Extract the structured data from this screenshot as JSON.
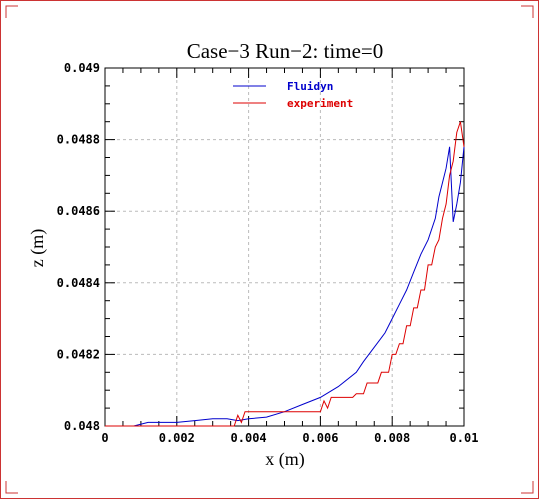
{
  "chart_data": {
    "type": "line",
    "title": "Case−3 Run−2: time=0",
    "xlabel": "x (m)",
    "ylabel": "z (m)",
    "xlim": [
      0,
      0.01
    ],
    "ylim": [
      0.048,
      0.049
    ],
    "xticks": [
      0,
      0.002,
      0.004,
      0.006,
      0.008,
      0.01
    ],
    "yticks": [
      0.048,
      0.0482,
      0.0484,
      0.0486,
      0.0488,
      0.049
    ],
    "xtick_labels": [
      "0",
      "0.002",
      "0.004",
      "0.006",
      "0.008",
      "0.01"
    ],
    "ytick_labels": [
      "0.048",
      "0.0482",
      "0.0484",
      "0.0486",
      "0.0488",
      "0.049"
    ],
    "grid": true,
    "legend_position": "top-center",
    "series": [
      {
        "name": "Fluidyn",
        "color": "#0000cc",
        "x": [
          0.0,
          0.0008,
          0.0012,
          0.0015,
          0.002,
          0.0025,
          0.003,
          0.0034,
          0.0037,
          0.004,
          0.0045,
          0.005,
          0.0055,
          0.006,
          0.0065,
          0.007,
          0.0072,
          0.0075,
          0.0078,
          0.008,
          0.0082,
          0.0084,
          0.0086,
          0.0088,
          0.009,
          0.0092,
          0.0093,
          0.0094,
          0.0095,
          0.0096,
          0.0097,
          0.0098,
          0.0099,
          0.01
        ],
        "y": [
          0.048,
          0.048,
          0.04801,
          0.04801,
          0.04801,
          0.048015,
          0.04802,
          0.04802,
          0.048015,
          0.04802,
          0.048025,
          0.04804,
          0.04806,
          0.04808,
          0.04811,
          0.04815,
          0.04818,
          0.04822,
          0.04826,
          0.0483,
          0.04834,
          0.04838,
          0.04843,
          0.04848,
          0.04852,
          0.04858,
          0.04864,
          0.04868,
          0.04872,
          0.04878,
          0.04857,
          0.04862,
          0.04868,
          0.04878
        ]
      },
      {
        "name": "experiment",
        "color": "#dd0000",
        "x": [
          0.0,
          0.0035,
          0.0036,
          0.0037,
          0.0038,
          0.0039,
          0.004,
          0.0049,
          0.005,
          0.0059,
          0.006,
          0.0061,
          0.0062,
          0.0063,
          0.0064,
          0.0065,
          0.0069,
          0.007,
          0.0072,
          0.0073,
          0.0076,
          0.0077,
          0.0079,
          0.008,
          0.0081,
          0.0082,
          0.0083,
          0.0084,
          0.0085,
          0.0086,
          0.0087,
          0.0088,
          0.0089,
          0.009,
          0.0091,
          0.0092,
          0.0093,
          0.0094,
          0.0095,
          0.0096,
          0.0097,
          0.0098,
          0.0099,
          0.01
        ],
        "y": [
          0.048,
          0.048,
          0.048,
          0.04803,
          0.04801,
          0.04804,
          0.04804,
          0.04804,
          0.04804,
          0.04804,
          0.04804,
          0.04807,
          0.04805,
          0.04808,
          0.04808,
          0.04808,
          0.04808,
          0.04809,
          0.04809,
          0.04812,
          0.04812,
          0.04815,
          0.04815,
          0.0482,
          0.0482,
          0.04823,
          0.04823,
          0.04828,
          0.04828,
          0.04833,
          0.04833,
          0.04838,
          0.04838,
          0.04845,
          0.04845,
          0.0485,
          0.04852,
          0.04858,
          0.04862,
          0.0487,
          0.04874,
          0.04882,
          0.04885,
          0.04878
        ]
      }
    ]
  }
}
